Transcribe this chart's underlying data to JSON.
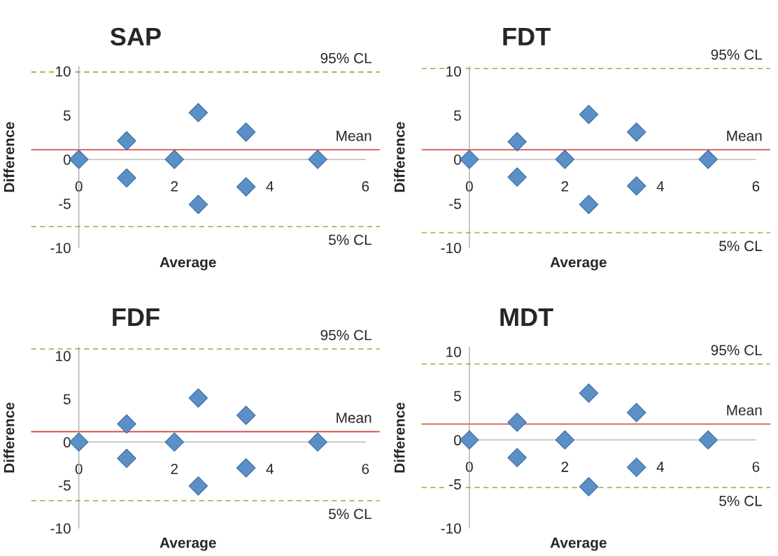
{
  "chart_data": [
    {
      "type": "scatter",
      "title": "SAP",
      "xlabel": "Average",
      "ylabel": "Difference",
      "x": [
        0,
        1,
        1,
        2,
        2.5,
        2.5,
        3.5,
        3.5,
        5
      ],
      "values": [
        0,
        2.1,
        -2.1,
        0,
        5.3,
        -5.1,
        3.1,
        -3.1,
        0
      ],
      "color": "#5b8fc8",
      "marker": "diamond",
      "xlim": [
        -1,
        6.3
      ],
      "xticks": [
        0,
        2,
        4,
        6
      ],
      "ylim": [
        -10,
        10.5
      ],
      "yticks": [
        -10,
        -5,
        0,
        5,
        10
      ],
      "grid": false,
      "legend": false,
      "ref_lines": [
        {
          "axis": "y",
          "value": 1.1,
          "label": "Mean",
          "color": "#d9534f",
          "line_style": "solid"
        },
        {
          "axis": "y",
          "value": 9.9,
          "label": "95% CL",
          "color": "#9bbb59",
          "line_style": "dashed"
        },
        {
          "axis": "y",
          "value": -7.6,
          "label": "5% CL",
          "color": "#9bbb59",
          "line_style": "dashed"
        }
      ]
    },
    {
      "type": "scatter",
      "title": "FDT",
      "xlabel": "Average",
      "ylabel": "Difference",
      "x": [
        0,
        1,
        1,
        2,
        2.5,
        2.5,
        3.5,
        3.5,
        5
      ],
      "values": [
        0,
        2.0,
        -2.0,
        0,
        5.1,
        -5.1,
        3.1,
        -3.0,
        0
      ],
      "color": "#5b8fc8",
      "marker": "diamond",
      "xlim": [
        -1,
        6.3
      ],
      "xticks": [
        0,
        2,
        4,
        6
      ],
      "ylim": [
        -10,
        10.5
      ],
      "yticks": [
        -10,
        -5,
        0,
        5,
        10
      ],
      "grid": false,
      "legend": false,
      "ref_lines": [
        {
          "axis": "y",
          "value": 1.1,
          "label": "Mean",
          "color": "#d9534f",
          "line_style": "solid"
        },
        {
          "axis": "y",
          "value": 10.3,
          "label": "95% CL",
          "color": "#9bbb59",
          "line_style": "dashed"
        },
        {
          "axis": "y",
          "value": -8.3,
          "label": "5% CL",
          "color": "#9bbb59",
          "line_style": "dashed"
        }
      ]
    },
    {
      "type": "scatter",
      "title": "FDF",
      "xlabel": "Average",
      "ylabel": "Difference",
      "x": [
        0,
        1,
        1,
        2,
        2.5,
        2.5,
        3.5,
        3.5,
        5
      ],
      "values": [
        0,
        2.1,
        -1.9,
        0,
        5.1,
        -5.1,
        3.1,
        -3.0,
        0
      ],
      "color": "#5b8fc8",
      "marker": "diamond",
      "xlim": [
        -1,
        6.3
      ],
      "xticks": [
        0,
        2,
        4,
        6
      ],
      "ylim": [
        -10,
        11
      ],
      "yticks": [
        -10,
        -5,
        0,
        5,
        10
      ],
      "grid": false,
      "legend": false,
      "ref_lines": [
        {
          "axis": "y",
          "value": 1.2,
          "label": "Mean",
          "color": "#d9534f",
          "line_style": "solid"
        },
        {
          "axis": "y",
          "value": 10.8,
          "label": "95% CL",
          "color": "#9bbb59",
          "line_style": "dashed"
        },
        {
          "axis": "y",
          "value": -6.8,
          "label": "5% CL",
          "color": "#9bbb59",
          "line_style": "dashed"
        }
      ]
    },
    {
      "type": "scatter",
      "title": "MDT",
      "xlabel": "Average",
      "ylabel": "Difference",
      "x": [
        0,
        1,
        1,
        2,
        2.5,
        2.5,
        3.5,
        3.5,
        5
      ],
      "values": [
        0,
        2.0,
        -2.0,
        0,
        5.3,
        -5.3,
        3.1,
        -3.1,
        0
      ],
      "color": "#5b8fc8",
      "marker": "diamond",
      "xlim": [
        -1,
        6.3
      ],
      "xticks": [
        0,
        2,
        4,
        6
      ],
      "ylim": [
        -10,
        10.5
      ],
      "yticks": [
        -10,
        -5,
        0,
        5,
        10
      ],
      "grid": false,
      "legend": false,
      "ref_lines": [
        {
          "axis": "y",
          "value": 1.8,
          "label": "Mean",
          "color": "#d9534f",
          "line_style": "solid"
        },
        {
          "axis": "y",
          "value": 8.6,
          "label": "95% CL",
          "color": "#9bbb59",
          "line_style": "dashed"
        },
        {
          "axis": "y",
          "value": -5.4,
          "label": "5% CL",
          "color": "#9bbb59",
          "line_style": "dashed"
        }
      ]
    }
  ]
}
